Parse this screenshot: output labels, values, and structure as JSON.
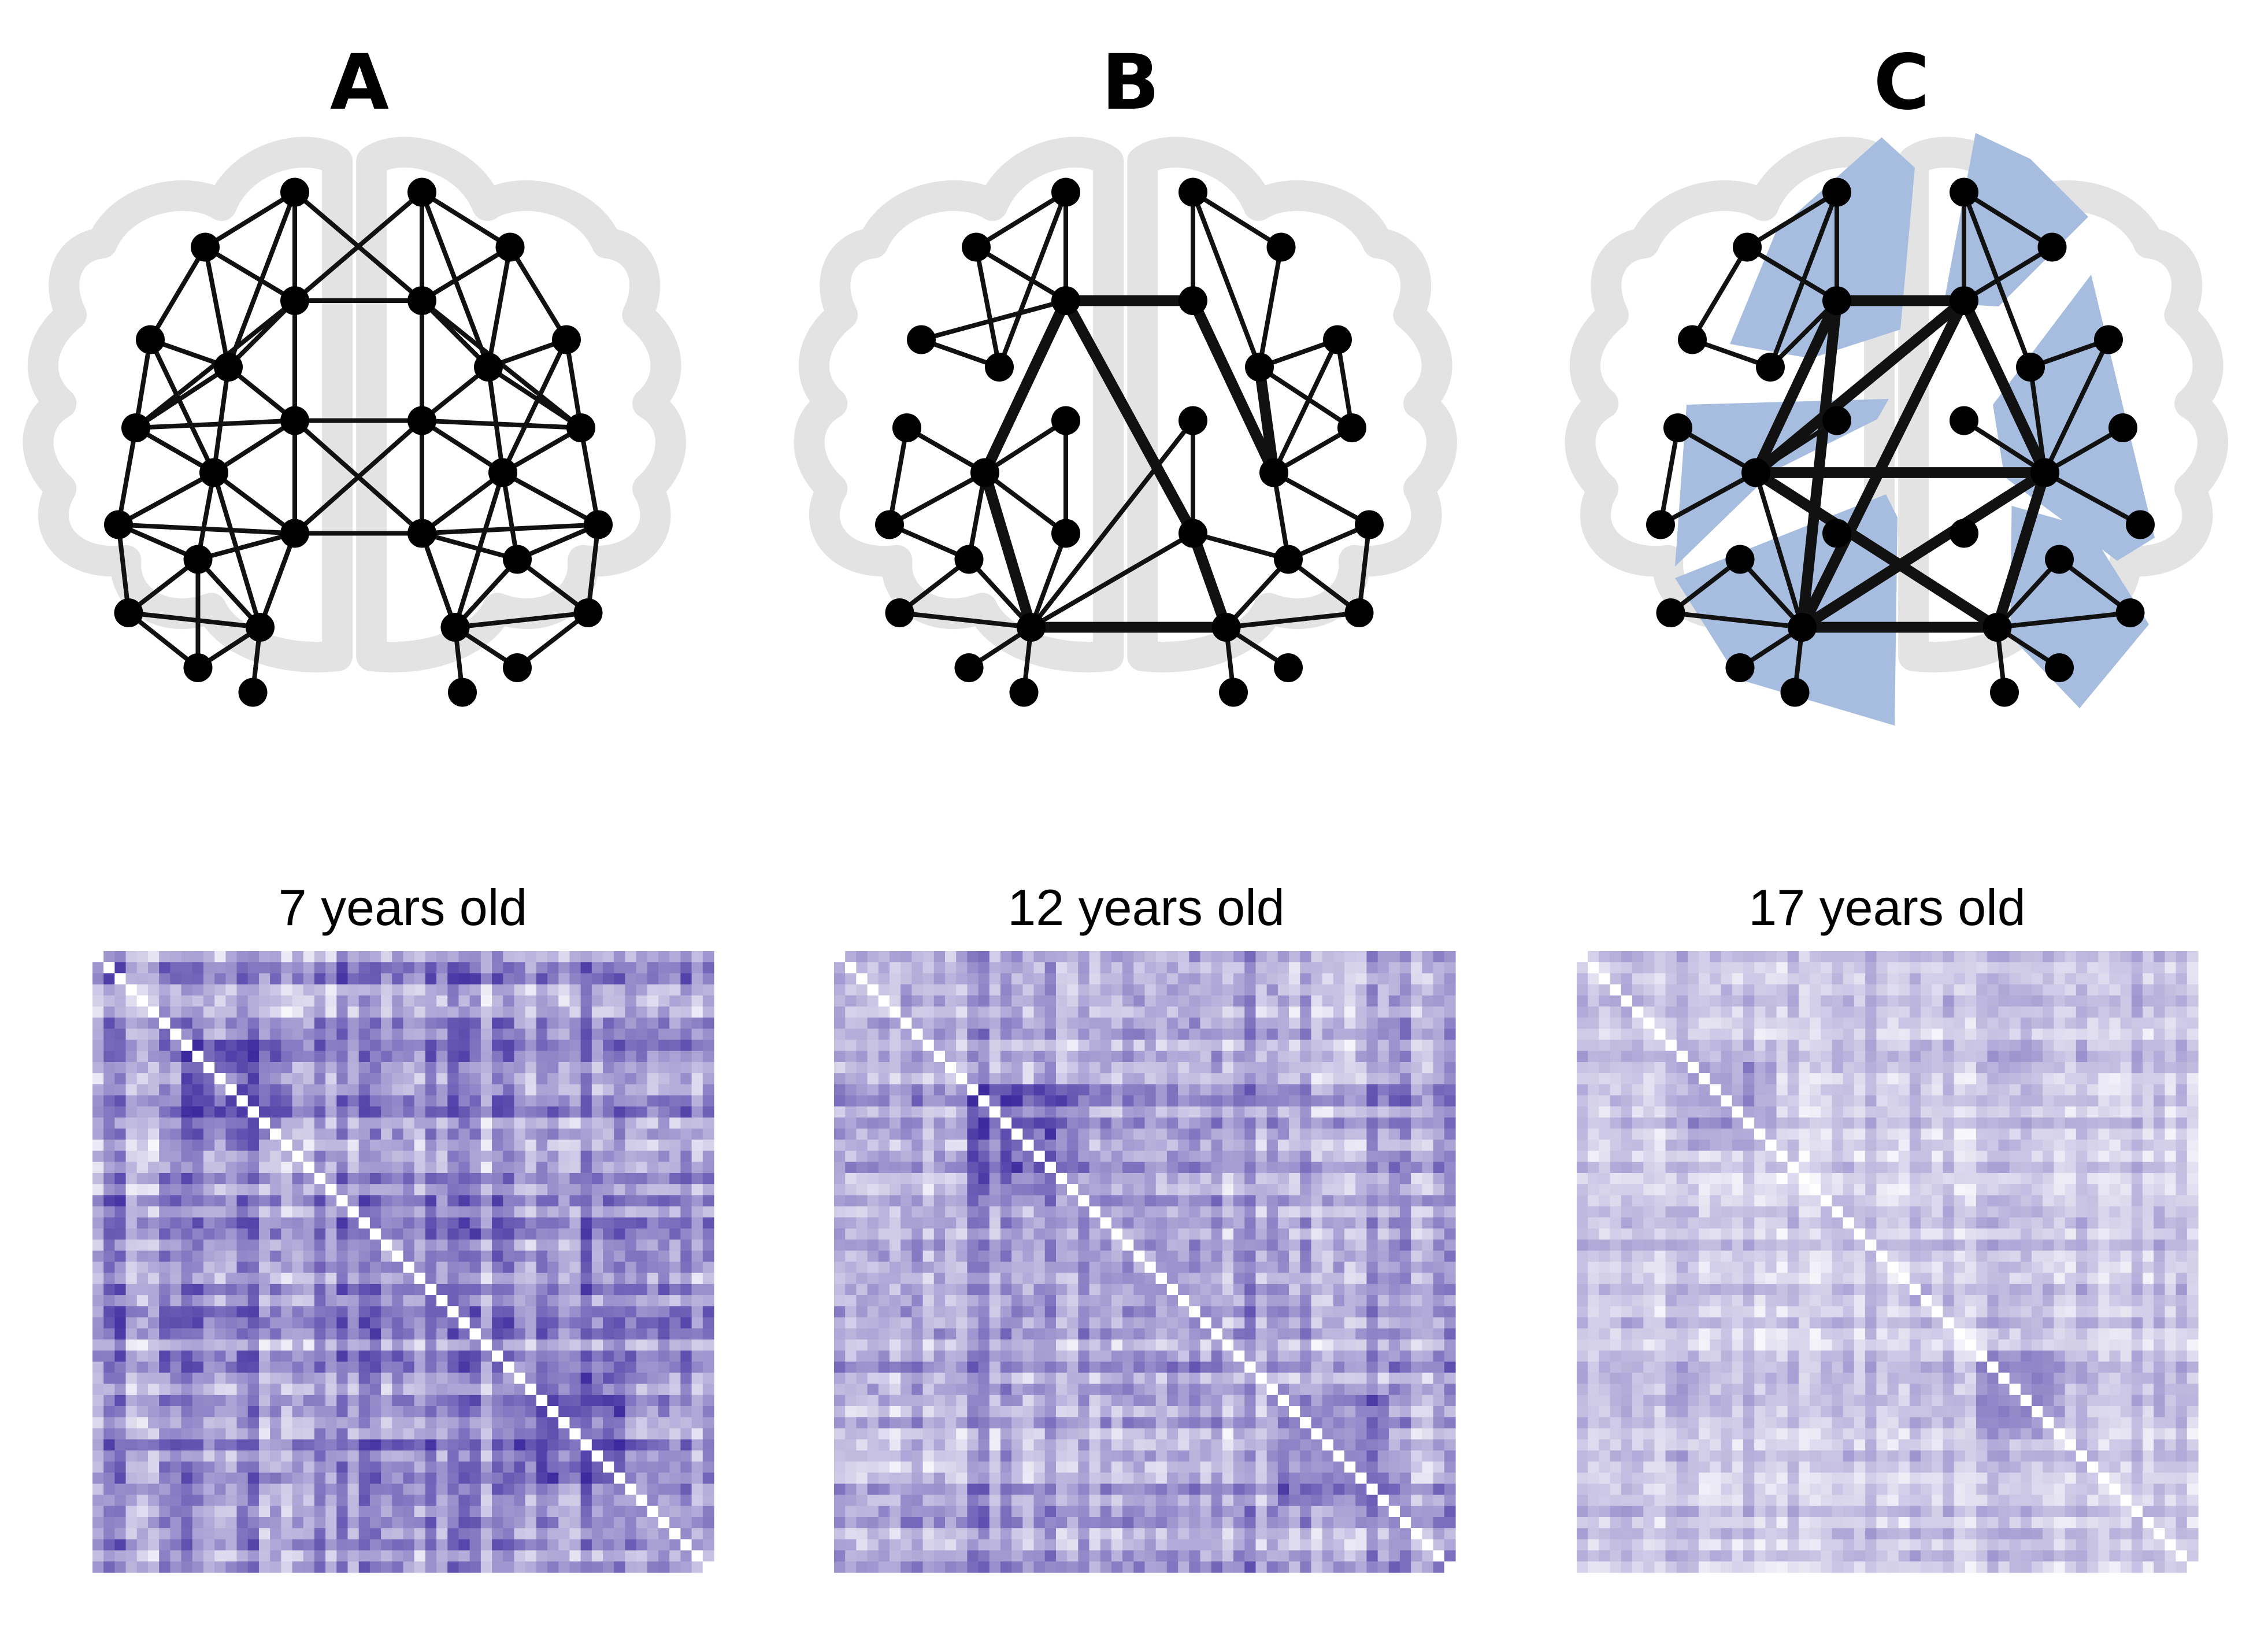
{
  "panels": [
    {
      "letter": "A",
      "matrix_title": "7 years old"
    },
    {
      "letter": "B",
      "matrix_title": "12 years old"
    },
    {
      "letter": "C",
      "matrix_title": "17 years old"
    }
  ],
  "colors": {
    "brain_outline": "#e3e3e3",
    "node": "#000000",
    "edge": "#111111",
    "module_fill": "#a7bde0",
    "matrix_low": "#ffffff",
    "matrix_high": "#3d2a9e"
  }
}
